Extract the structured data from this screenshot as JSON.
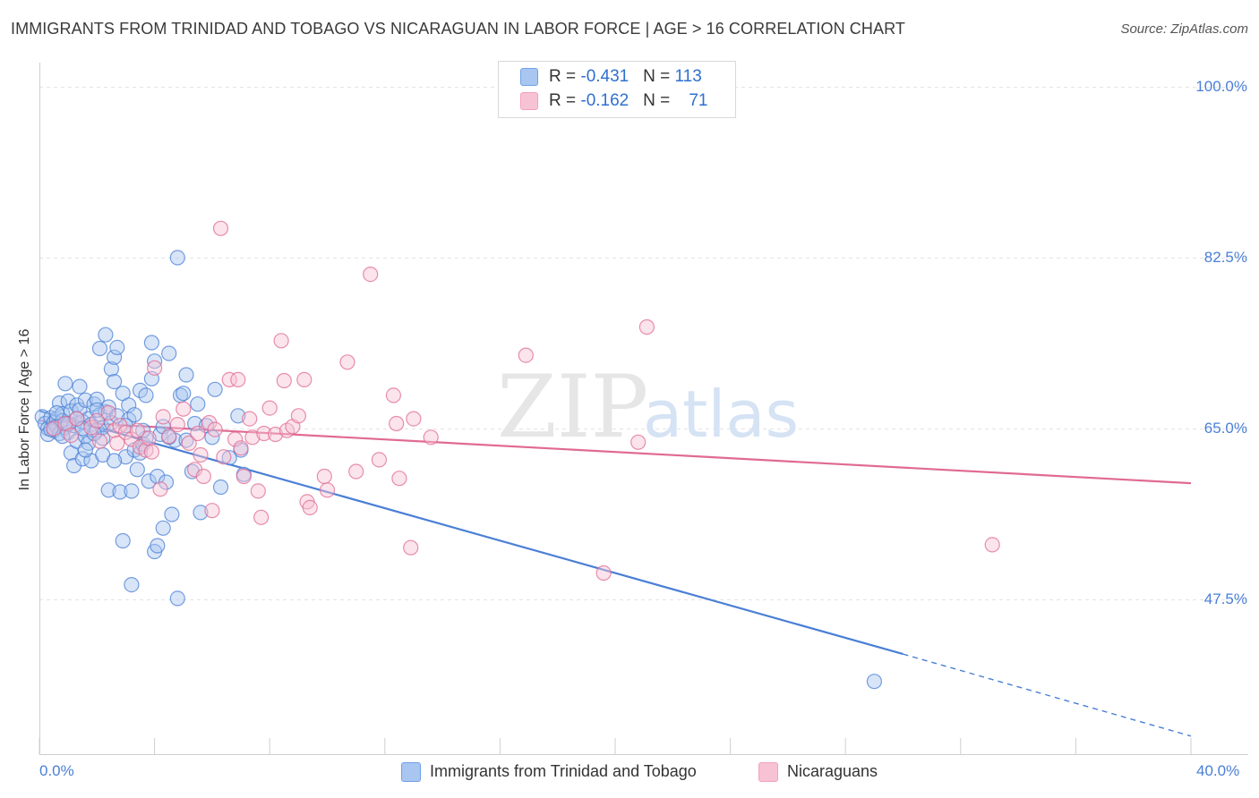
{
  "header": {
    "title": "IMMIGRANTS FROM TRINIDAD AND TOBAGO VS NICARAGUAN IN LABOR FORCE | AGE > 16 CORRELATION CHART",
    "source": "Source: ZipAtlas.com"
  },
  "watermark": {
    "zip": "ZIP",
    "atlas": "atlas"
  },
  "legend": {
    "rows": [
      {
        "r_label": "R = ",
        "r_value": "-0.431",
        "n_label": "N = ",
        "n_value": "113",
        "color": "#6fa0e8"
      },
      {
        "r_label": "R = ",
        "r_value": "-0.162",
        "n_label": "N = ",
        "n_value": "71",
        "color": "#f4a0bc"
      }
    ]
  },
  "bottom_legend": {
    "items": [
      {
        "label": "Immigrants from Trinidad and Tobago",
        "color": "#6fa0e8"
      },
      {
        "label": "Nicaraguans",
        "color": "#f4a0bc"
      }
    ]
  },
  "chart_data": {
    "type": "scatter",
    "title": "IMMIGRANTS FROM TRINIDAD AND TOBAGO VS NICARAGUAN IN LABOR FORCE | AGE > 16 CORRELATION CHART",
    "ylabel": "In Labor Force | Age > 16",
    "xlabel": "",
    "xlim": [
      0,
      40
    ],
    "ylim": [
      35,
      101
    ],
    "x_tick_labels": [
      "0.0%",
      "40.0%"
    ],
    "y_ticks": [
      47.5,
      65.0,
      82.5,
      100.0
    ],
    "y_tick_labels": [
      "47.5%",
      "65.0%",
      "82.5%",
      "100.0%"
    ],
    "grid": "horizontal dashed",
    "legend_position": "top-center",
    "series": [
      {
        "name": "Immigrants from Trinidad and Tobago",
        "color": "#4a7fd6",
        "fill": "#a9c6f0",
        "trend": {
          "x": [
            0,
            30
          ],
          "y": [
            66.8,
            41.9
          ],
          "dashed_to": [
            40,
            33.5
          ]
        },
        "points": [
          [
            0.1,
            66.2
          ],
          [
            0.2,
            65.5
          ],
          [
            0.3,
            65.0
          ],
          [
            0.3,
            64.4
          ],
          [
            0.4,
            66.1
          ],
          [
            0.5,
            65.6
          ],
          [
            0.5,
            64.8
          ],
          [
            0.6,
            66.0
          ],
          [
            0.6,
            65.2
          ],
          [
            0.7,
            64.5
          ],
          [
            0.7,
            67.6
          ],
          [
            0.8,
            66.5
          ],
          [
            0.8,
            65.8
          ],
          [
            0.9,
            65.1
          ],
          [
            0.9,
            69.6
          ],
          [
            1.0,
            67.8
          ],
          [
            1.0,
            64.6
          ],
          [
            1.1,
            66.8
          ],
          [
            1.1,
            62.5
          ],
          [
            1.2,
            65.3
          ],
          [
            1.2,
            61.2
          ],
          [
            1.3,
            67.4
          ],
          [
            1.3,
            63.7
          ],
          [
            1.4,
            69.3
          ],
          [
            1.4,
            66.9
          ],
          [
            1.5,
            65.7
          ],
          [
            1.5,
            61.9
          ],
          [
            1.6,
            64.2
          ],
          [
            1.6,
            67.9
          ],
          [
            1.7,
            66.0
          ],
          [
            1.7,
            63.5
          ],
          [
            1.8,
            61.7
          ],
          [
            1.8,
            65.4
          ],
          [
            1.9,
            67.5
          ],
          [
            2.0,
            68.0
          ],
          [
            2.0,
            64.8
          ],
          [
            2.1,
            66.4
          ],
          [
            2.1,
            73.2
          ],
          [
            2.2,
            65.1
          ],
          [
            2.2,
            62.3
          ],
          [
            2.3,
            74.6
          ],
          [
            2.3,
            66.7
          ],
          [
            2.4,
            67.2
          ],
          [
            2.4,
            58.7
          ],
          [
            2.5,
            71.1
          ],
          [
            2.5,
            65.6
          ],
          [
            2.6,
            72.3
          ],
          [
            2.6,
            69.8
          ],
          [
            2.7,
            73.3
          ],
          [
            2.7,
            66.3
          ],
          [
            2.8,
            58.5
          ],
          [
            2.9,
            68.6
          ],
          [
            2.9,
            53.5
          ],
          [
            3.0,
            62.1
          ],
          [
            3.1,
            67.4
          ],
          [
            3.1,
            65.9
          ],
          [
            3.2,
            49.0
          ],
          [
            3.2,
            58.6
          ],
          [
            3.3,
            66.4
          ],
          [
            3.3,
            62.8
          ],
          [
            3.4,
            60.8
          ],
          [
            3.5,
            68.9
          ],
          [
            3.5,
            62.5
          ],
          [
            3.6,
            63.4
          ],
          [
            3.7,
            64.0
          ],
          [
            3.7,
            68.4
          ],
          [
            3.8,
            59.6
          ],
          [
            3.9,
            73.8
          ],
          [
            3.9,
            70.1
          ],
          [
            4.0,
            71.9
          ],
          [
            4.0,
            52.4
          ],
          [
            4.1,
            53.0
          ],
          [
            4.1,
            60.1
          ],
          [
            4.2,
            64.4
          ],
          [
            4.3,
            65.2
          ],
          [
            4.3,
            54.8
          ],
          [
            4.4,
            59.5
          ],
          [
            4.5,
            72.7
          ],
          [
            4.6,
            56.2
          ],
          [
            4.7,
            63.8
          ],
          [
            4.8,
            47.6
          ],
          [
            4.9,
            68.4
          ],
          [
            5.0,
            68.6
          ],
          [
            5.1,
            70.5
          ],
          [
            5.1,
            63.8
          ],
          [
            5.3,
            60.6
          ],
          [
            5.4,
            65.5
          ],
          [
            5.5,
            67.5
          ],
          [
            5.6,
            56.4
          ],
          [
            5.8,
            65.3
          ],
          [
            6.0,
            64.1
          ],
          [
            6.1,
            69.0
          ],
          [
            6.3,
            59.0
          ],
          [
            6.6,
            62.0
          ],
          [
            6.9,
            66.3
          ],
          [
            7.0,
            62.8
          ],
          [
            7.1,
            60.3
          ],
          [
            4.5,
            64.1
          ],
          [
            3.0,
            65.3
          ],
          [
            2.2,
            64.0
          ],
          [
            1.9,
            64.5
          ],
          [
            1.0,
            65.5
          ],
          [
            0.4,
            64.9
          ],
          [
            0.8,
            64.2
          ],
          [
            1.3,
            66.0
          ],
          [
            1.6,
            62.8
          ],
          [
            2.6,
            61.7
          ],
          [
            3.6,
            64.8
          ],
          [
            4.8,
            82.5
          ],
          [
            29.0,
            39.1
          ],
          [
            2.0,
            66.9
          ],
          [
            1.5,
            65.0
          ],
          [
            0.6,
            66.6
          ]
        ]
      },
      {
        "name": "Nicaraguans",
        "color": "#e06a92",
        "fill": "#f7c3d4",
        "trend": {
          "x": [
            0,
            40
          ],
          "y": [
            65.8,
            59.4
          ]
        },
        "points": [
          [
            0.5,
            65.0
          ],
          [
            0.9,
            65.5
          ],
          [
            1.3,
            66.0
          ],
          [
            1.8,
            65.1
          ],
          [
            2.1,
            63.7
          ],
          [
            2.4,
            66.6
          ],
          [
            2.6,
            64.8
          ],
          [
            2.8,
            65.3
          ],
          [
            3.0,
            64.6
          ],
          [
            3.2,
            63.9
          ],
          [
            3.5,
            63.1
          ],
          [
            3.7,
            62.8
          ],
          [
            3.8,
            64.0
          ],
          [
            4.0,
            71.2
          ],
          [
            4.3,
            66.2
          ],
          [
            4.5,
            64.2
          ],
          [
            4.8,
            65.4
          ],
          [
            5.0,
            67.0
          ],
          [
            5.2,
            63.5
          ],
          [
            5.4,
            60.8
          ],
          [
            5.5,
            64.5
          ],
          [
            5.7,
            60.1
          ],
          [
            5.9,
            65.6
          ],
          [
            6.0,
            56.6
          ],
          [
            6.3,
            85.5
          ],
          [
            6.4,
            62.1
          ],
          [
            6.6,
            70.0
          ],
          [
            6.8,
            63.9
          ],
          [
            6.9,
            70.0
          ],
          [
            7.1,
            60.1
          ],
          [
            7.3,
            66.0
          ],
          [
            7.4,
            64.1
          ],
          [
            7.6,
            58.6
          ],
          [
            7.7,
            55.9
          ],
          [
            7.8,
            64.5
          ],
          [
            8.0,
            67.1
          ],
          [
            8.2,
            64.4
          ],
          [
            8.4,
            74.0
          ],
          [
            8.5,
            69.9
          ],
          [
            8.6,
            64.8
          ],
          [
            8.8,
            65.2
          ],
          [
            9.0,
            66.3
          ],
          [
            9.2,
            70.0
          ],
          [
            9.3,
            57.5
          ],
          [
            9.4,
            56.9
          ],
          [
            9.9,
            60.1
          ],
          [
            10.0,
            58.7
          ],
          [
            10.7,
            71.8
          ],
          [
            11.0,
            60.6
          ],
          [
            11.5,
            80.8
          ],
          [
            11.8,
            61.8
          ],
          [
            12.3,
            68.4
          ],
          [
            12.4,
            65.5
          ],
          [
            12.5,
            59.9
          ],
          [
            12.9,
            52.8
          ],
          [
            13.0,
            66.0
          ],
          [
            13.6,
            64.1
          ],
          [
            16.9,
            72.5
          ],
          [
            19.6,
            50.2
          ],
          [
            20.8,
            63.6
          ],
          [
            21.1,
            75.4
          ],
          [
            33.1,
            53.1
          ],
          [
            4.2,
            58.8
          ],
          [
            5.6,
            62.3
          ],
          [
            3.4,
            64.8
          ],
          [
            2.0,
            65.8
          ],
          [
            1.1,
            64.3
          ],
          [
            7.0,
            63.0
          ],
          [
            6.1,
            64.9
          ],
          [
            3.9,
            62.6
          ],
          [
            2.7,
            63.5
          ]
        ]
      }
    ]
  }
}
